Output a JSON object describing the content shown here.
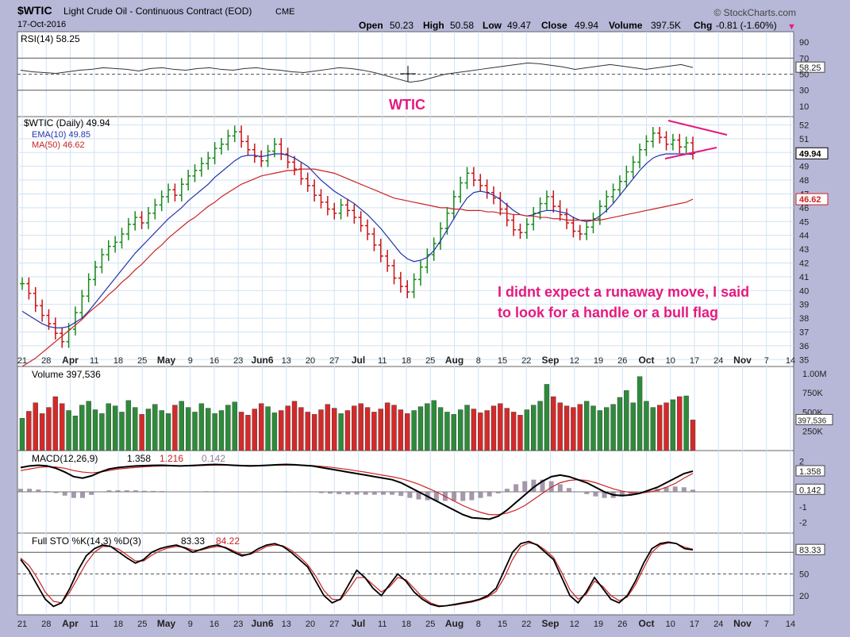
{
  "header": {
    "symbol": "$WTIC",
    "name": "Light Crude Oil - Continuous Contract (EOD)",
    "exchange": "CME",
    "date": "17-Oct-2016",
    "watermark": "© StockCharts.com",
    "open_label": "Open",
    "open": "50.23",
    "high_label": "High",
    "high": "50.58",
    "low_label": "Low",
    "low": "49.47",
    "close_label": "Close",
    "close": "49.94",
    "volume_label": "Volume",
    "volume": "397.5K",
    "chg_label": "Chg",
    "chg": "-0.81 (-1.60%)",
    "chg_arrow": "▼"
  },
  "annotation": {
    "title": "WTIC",
    "line1": "I didnt expect a runaway move,  I said",
    "line2": "to look for a handle or a bull flag",
    "color": "#e6197f"
  },
  "chart_data": [
    {
      "type": "line",
      "title": "RSI(14) 58.25",
      "y_ticks": [
        "90",
        "70",
        "58.25",
        "50",
        "30",
        "10"
      ],
      "bands": [
        70,
        30
      ],
      "last_value": "58.25",
      "values": [
        55,
        53,
        52,
        51,
        53,
        55,
        56,
        58,
        57,
        56,
        54,
        57,
        58,
        56,
        55,
        57,
        58,
        56,
        55,
        57,
        58,
        56,
        55,
        53,
        52,
        54,
        56,
        58,
        57,
        55,
        52,
        48,
        44,
        40,
        42,
        46,
        50,
        52,
        54,
        56,
        58,
        60,
        62,
        64,
        63,
        61,
        59,
        56,
        58,
        60,
        62,
        60,
        58,
        56,
        58,
        60,
        62,
        58.25
      ]
    },
    {
      "type": "candlestick",
      "title": "$WTIC (Daily) 49.94",
      "legend": [
        {
          "name": "EMA(10) 49.85",
          "color": "#2233aa"
        },
        {
          "name": "MA(50) 46.62",
          "color": "#cc2222"
        }
      ],
      "y_ticks": [
        "52",
        "51",
        "50",
        "49",
        "48",
        "47",
        "46",
        "45",
        "44",
        "43",
        "42",
        "41",
        "40",
        "39",
        "38",
        "37",
        "36",
        "35"
      ],
      "ylim": [
        34.5,
        52.6
      ],
      "price_tags": [
        {
          "label": "49.94",
          "value": 49.94,
          "color": "#000000"
        },
        {
          "label": "46.62",
          "value": 46.62,
          "color": "#cc2222"
        }
      ],
      "x_labels": [
        "21",
        "28",
        "Apr",
        "11",
        "18",
        "25",
        "May",
        "9",
        "16",
        "23",
        "Jun6",
        "13",
        "20",
        "27",
        "Jul",
        "11",
        "18",
        "25",
        "Aug",
        "8",
        "15",
        "22",
        "Sep",
        "12",
        "19",
        "26",
        "Oct",
        "10",
        "17",
        "24",
        "Nov",
        "7",
        "14"
      ],
      "closes": [
        40.5,
        39.8,
        38.9,
        38.2,
        37.6,
        36.9,
        36.3,
        37.2,
        38.4,
        39.6,
        40.8,
        41.7,
        42.6,
        43.2,
        43.5,
        44.1,
        44.8,
        45.3,
        44.9,
        45.6,
        46.2,
        46.8,
        47.3,
        46.9,
        47.7,
        48.3,
        48.7,
        49.2,
        49.6,
        50.3,
        50.6,
        51.2,
        51.5,
        50.8,
        50.2,
        49.7,
        49.4,
        50.1,
        50.6,
        49.9,
        49.3,
        48.8,
        48.1,
        47.6,
        46.9,
        46.4,
        45.9,
        45.6,
        46.2,
        45.8,
        45.3,
        44.7,
        44.1,
        43.3,
        42.5,
        41.8,
        40.9,
        40.3,
        39.9,
        40.8,
        41.7,
        42.6,
        43.4,
        44.5,
        45.6,
        46.8,
        47.8,
        48.5,
        48.0,
        47.6,
        47.1,
        46.7,
        45.9,
        45.1,
        44.4,
        44.2,
        44.8,
        45.6,
        46.3,
        46.8,
        46.1,
        45.5,
        44.9,
        44.3,
        44.1,
        44.6,
        45.2,
        46.1,
        46.8,
        47.3,
        47.9,
        48.6,
        49.3,
        50.2,
        50.8,
        51.4,
        51.1,
        50.6,
        50.9,
        50.4,
        50.7,
        49.94
      ],
      "ema10": [
        38.5,
        38.2,
        37.9,
        37.6,
        37.4,
        37.3,
        37.3,
        37.4,
        37.7,
        38.0,
        38.5,
        39.1,
        39.7,
        40.3,
        40.9,
        41.5,
        42.1,
        42.7,
        43.2,
        43.7,
        44.2,
        44.7,
        45.2,
        45.6,
        46.0,
        46.5,
        46.9,
        47.3,
        47.7,
        48.2,
        48.6,
        49.0,
        49.4,
        49.7,
        49.8,
        49.8,
        49.7,
        49.8,
        49.9,
        49.9,
        49.8,
        49.6,
        49.3,
        49.0,
        48.5,
        48.0,
        47.6,
        47.2,
        46.9,
        46.6,
        46.3,
        45.9,
        45.5,
        45.0,
        44.5,
        43.9,
        43.3,
        42.7,
        42.3,
        42.1,
        42.2,
        42.4,
        42.9,
        43.6,
        44.4,
        45.2,
        46.0,
        46.7,
        47.1,
        47.2,
        47.1,
        46.9,
        46.6,
        46.2,
        45.8,
        45.5,
        45.4,
        45.5,
        45.7,
        45.8,
        45.8,
        45.7,
        45.6,
        45.3,
        45.1,
        45.0,
        45.1,
        45.4,
        45.8,
        46.3,
        46.9,
        47.5,
        48.1,
        48.7,
        49.2,
        49.6,
        49.8,
        49.9,
        49.9,
        49.9,
        49.9,
        49.85
      ],
      "ma50": [
        34.5,
        34.8,
        35.1,
        35.5,
        35.9,
        36.3,
        36.7,
        37.1,
        37.5,
        37.9,
        38.4,
        38.8,
        39.2,
        39.7,
        40.1,
        40.6,
        41.0,
        41.5,
        41.9,
        42.4,
        42.9,
        43.3,
        43.8,
        44.2,
        44.6,
        45.0,
        45.3,
        45.7,
        46.1,
        46.4,
        46.8,
        47.1,
        47.4,
        47.7,
        47.9,
        48.1,
        48.3,
        48.4,
        48.5,
        48.6,
        48.7,
        48.7,
        48.8,
        48.8,
        48.8,
        48.7,
        48.6,
        48.5,
        48.3,
        48.1,
        47.9,
        47.7,
        47.5,
        47.3,
        47.1,
        46.9,
        46.7,
        46.6,
        46.5,
        46.4,
        46.3,
        46.2,
        46.1,
        46.0,
        46.0,
        45.9,
        45.9,
        45.8,
        45.8,
        45.8,
        45.7,
        45.7,
        45.6,
        45.6,
        45.5,
        45.5,
        45.4,
        45.4,
        45.3,
        45.3,
        45.2,
        45.2,
        45.1,
        45.1,
        45.1,
        45.1,
        45.1,
        45.1,
        45.2,
        45.3,
        45.4,
        45.5,
        45.6,
        45.7,
        45.8,
        45.9,
        46.0,
        46.1,
        46.2,
        46.3,
        46.4,
        46.62
      ]
    },
    {
      "type": "bar",
      "title": "Volume 397,536",
      "y_ticks": [
        "1.00M",
        "750K",
        "500K",
        "250K"
      ],
      "last_value": "397,536",
      "ylim": [
        0,
        1050000
      ],
      "values": [
        420000,
        510000,
        620000,
        480000,
        560000,
        700000,
        610000,
        520000,
        450000,
        590000,
        640000,
        530000,
        480000,
        610000,
        580000,
        500000,
        650000,
        560000,
        470000,
        540000,
        600000,
        520000,
        480000,
        590000,
        640000,
        560000,
        500000,
        610000,
        550000,
        480000,
        520000,
        590000,
        630000,
        500000,
        460000,
        540000,
        610000,
        570000,
        490000,
        520000,
        580000,
        640000,
        560000,
        500000,
        470000,
        530000,
        600000,
        550000,
        480000,
        520000,
        580000,
        610000,
        560000,
        500000,
        540000,
        620000,
        590000,
        530000,
        480000,
        520000,
        570000,
        610000,
        650000,
        560000,
        500000,
        470000,
        530000,
        590000,
        540000,
        490000,
        520000,
        580000,
        610000,
        550000,
        500000,
        460000,
        530000,
        590000,
        640000,
        860000,
        700000,
        620000,
        580000,
        560000,
        600000,
        640000,
        580000,
        520000,
        560000,
        600000,
        690000,
        780000,
        620000,
        960000,
        640000,
        560000,
        590000,
        620000,
        660000,
        700000,
        710000,
        397536
      ]
    },
    {
      "type": "line",
      "title": "MACD(12,26,9) 1.358, 1.216, 0.142",
      "series": [
        {
          "name": "1.358",
          "color": "#000000"
        },
        {
          "name": "1.216",
          "color": "#cc2222"
        },
        {
          "name": "0.142",
          "color": "#8f7e96"
        }
      ],
      "y_ticks": [
        "2",
        "1.358",
        "0.142",
        "-1",
        "-2"
      ],
      "ylim": [
        -2.4,
        2.4
      ],
      "macd": [
        1.6,
        1.7,
        1.75,
        1.7,
        1.55,
        1.3,
        1.0,
        0.9,
        1.05,
        1.3,
        1.5,
        1.6,
        1.65,
        1.7,
        1.72,
        1.74,
        1.75,
        1.72,
        1.7,
        1.72,
        1.75,
        1.78,
        1.8,
        1.78,
        1.75,
        1.72,
        1.7,
        1.72,
        1.75,
        1.78,
        1.8,
        1.78,
        1.74,
        1.7,
        1.6,
        1.5,
        1.4,
        1.3,
        1.2,
        1.1,
        1.0,
        0.9,
        0.8,
        0.6,
        0.3,
        0.0,
        -0.3,
        -0.6,
        -0.9,
        -1.2,
        -1.5,
        -1.7,
        -1.75,
        -1.8,
        -1.6,
        -1.2,
        -0.7,
        -0.2,
        0.3,
        0.7,
        1.0,
        1.1,
        1.0,
        0.8,
        0.6,
        0.3,
        0.0,
        -0.2,
        -0.25,
        -0.2,
        -0.1,
        0.1,
        0.3,
        0.6,
        0.9,
        1.2,
        1.358
      ],
      "signal": [
        1.4,
        1.5,
        1.6,
        1.65,
        1.63,
        1.55,
        1.4,
        1.3,
        1.25,
        1.3,
        1.4,
        1.5,
        1.55,
        1.6,
        1.65,
        1.68,
        1.7,
        1.7,
        1.7,
        1.7,
        1.72,
        1.74,
        1.76,
        1.76,
        1.75,
        1.74,
        1.73,
        1.73,
        1.74,
        1.75,
        1.76,
        1.76,
        1.74,
        1.72,
        1.68,
        1.62,
        1.55,
        1.47,
        1.38,
        1.29,
        1.19,
        1.09,
        0.99,
        0.87,
        0.7,
        0.5,
        0.25,
        0.0,
        -0.3,
        -0.6,
        -0.9,
        -1.15,
        -1.35,
        -1.5,
        -1.5,
        -1.4,
        -1.2,
        -0.9,
        -0.5,
        -0.1,
        0.3,
        0.6,
        0.75,
        0.8,
        0.75,
        0.6,
        0.4,
        0.2,
        0.05,
        -0.05,
        -0.08,
        -0.02,
        0.1,
        0.3,
        0.55,
        0.9,
        1.216
      ],
      "histogram": [
        0.2,
        0.2,
        0.15,
        0.05,
        -0.08,
        -0.25,
        -0.4,
        -0.4,
        -0.2,
        0.0,
        0.1,
        0.1,
        0.1,
        0.1,
        0.07,
        0.06,
        0.05,
        0.02,
        0.0,
        0.02,
        0.03,
        0.04,
        0.04,
        0.02,
        0.0,
        -0.02,
        -0.03,
        -0.01,
        0.01,
        0.03,
        0.04,
        0.02,
        0.0,
        -0.02,
        -0.08,
        -0.12,
        -0.15,
        -0.17,
        -0.18,
        -0.19,
        -0.19,
        -0.19,
        -0.19,
        -0.27,
        -0.4,
        -0.5,
        -0.55,
        -0.6,
        -0.6,
        -0.6,
        -0.6,
        -0.55,
        -0.4,
        -0.3,
        -0.1,
        0.2,
        0.5,
        0.7,
        0.8,
        0.8,
        0.7,
        0.5,
        0.25,
        0.0,
        -0.15,
        -0.3,
        -0.4,
        -0.4,
        -0.3,
        -0.15,
        -0.02,
        0.12,
        0.2,
        0.3,
        0.35,
        0.3,
        0.142
      ]
    },
    {
      "type": "line",
      "title": "Full STO %K(14,3) %D(3) 83.33, 84.22",
      "series": [
        {
          "name": "83.33",
          "color": "#000000"
        },
        {
          "name": "84.22",
          "color": "#cc2222"
        }
      ],
      "y_ticks": [
        "83.33",
        "50",
        "20"
      ],
      "bands": [
        80,
        20
      ],
      "ylim": [
        0,
        100
      ],
      "k": [
        70,
        55,
        35,
        15,
        5,
        10,
        30,
        55,
        75,
        85,
        90,
        88,
        80,
        72,
        65,
        70,
        80,
        85,
        88,
        90,
        86,
        80,
        84,
        88,
        90,
        86,
        80,
        75,
        78,
        85,
        90,
        92,
        88,
        80,
        70,
        60,
        40,
        20,
        10,
        15,
        35,
        55,
        45,
        30,
        20,
        35,
        50,
        40,
        25,
        15,
        8,
        5,
        6,
        8,
        10,
        12,
        15,
        20,
        30,
        55,
        80,
        92,
        95,
        90,
        80,
        70,
        45,
        20,
        10,
        25,
        45,
        30,
        15,
        10,
        20,
        40,
        65,
        85,
        92,
        94,
        92,
        85,
        83.33
      ],
      "d": [
        72,
        62,
        45,
        25,
        12,
        10,
        25,
        45,
        65,
        80,
        88,
        88,
        84,
        76,
        68,
        68,
        76,
        82,
        86,
        88,
        87,
        83,
        83,
        86,
        88,
        87,
        82,
        77,
        77,
        82,
        88,
        90,
        89,
        83,
        74,
        63,
        47,
        27,
        15,
        14,
        28,
        45,
        45,
        35,
        25,
        32,
        45,
        42,
        30,
        18,
        10,
        6,
        6,
        7,
        9,
        11,
        14,
        18,
        26,
        45,
        70,
        88,
        93,
        91,
        83,
        73,
        52,
        28,
        15,
        22,
        40,
        33,
        20,
        13,
        18,
        35,
        58,
        80,
        90,
        93,
        92,
        87,
        84.22
      ]
    }
  ]
}
